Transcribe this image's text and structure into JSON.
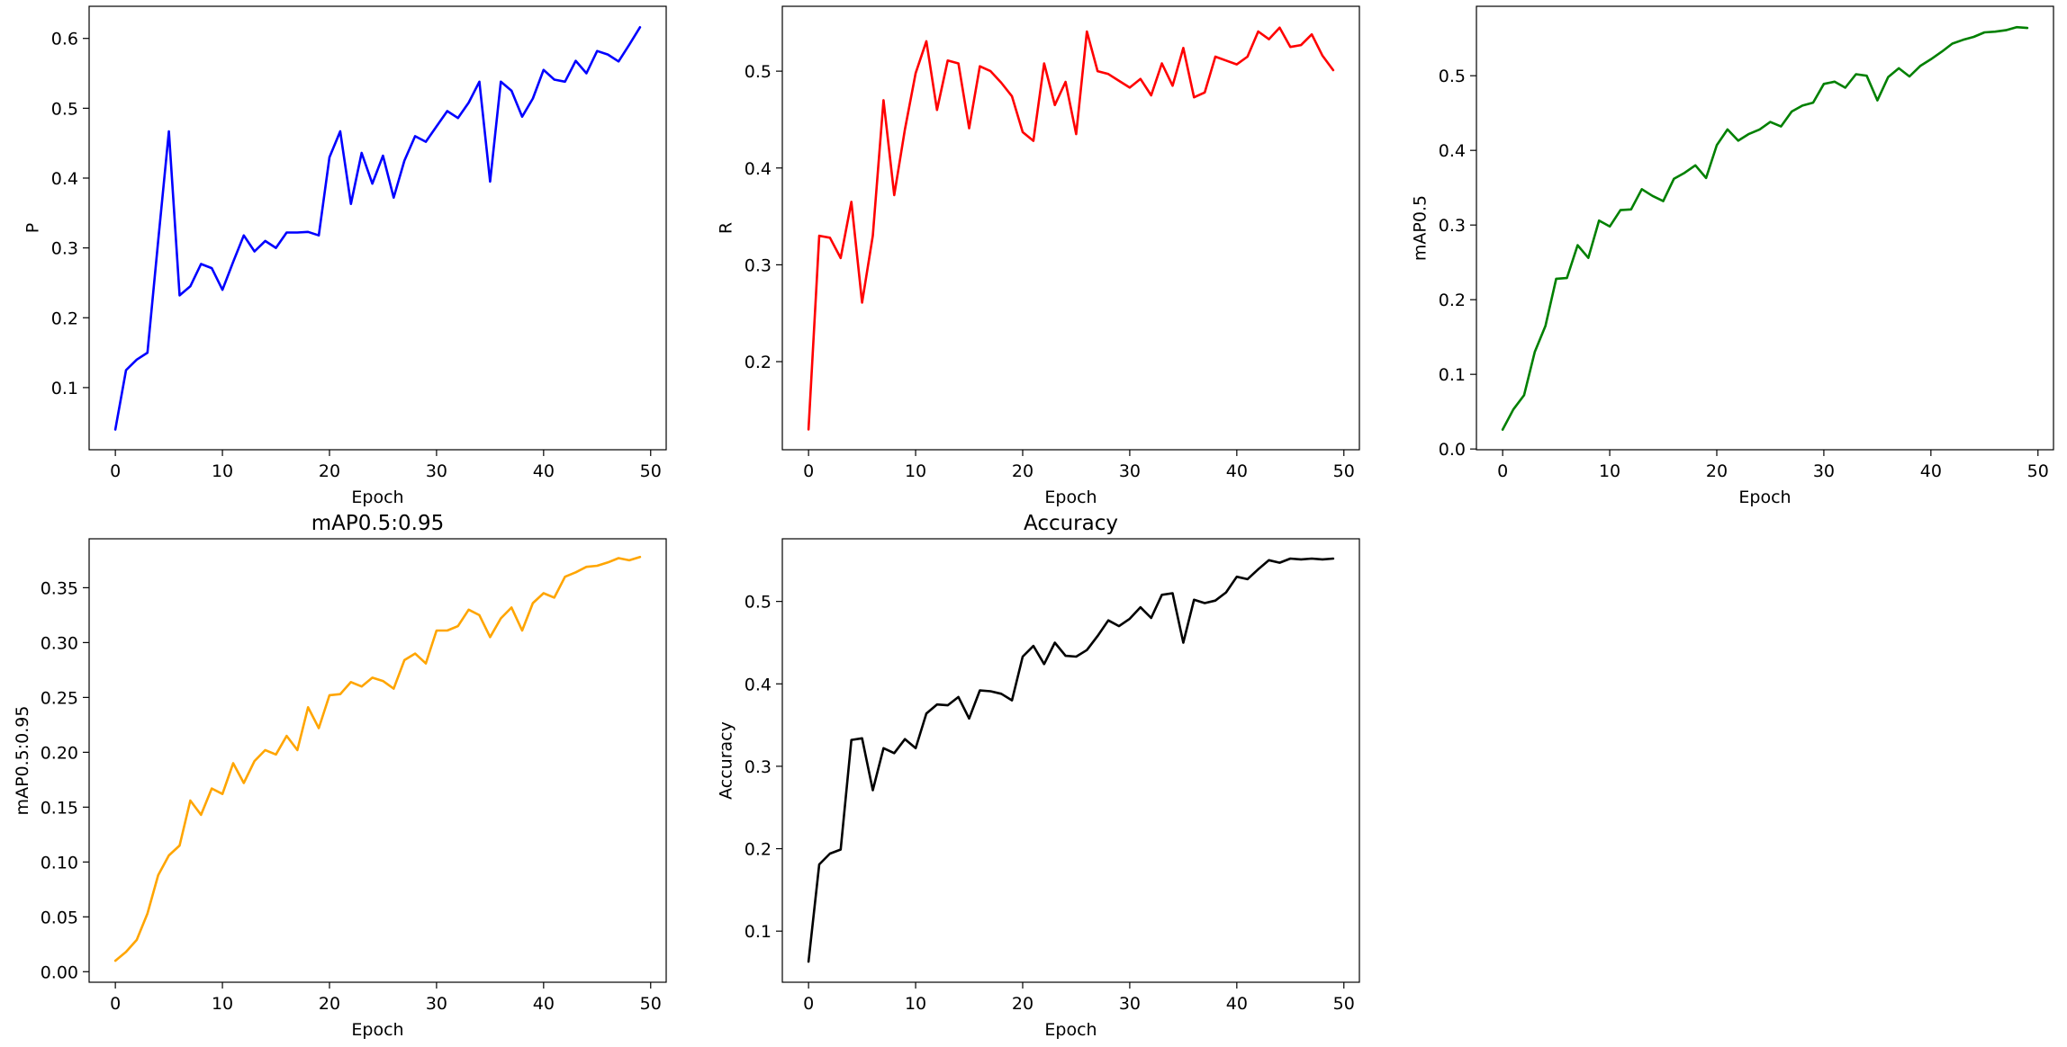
{
  "chart_data": [
    {
      "type": "line",
      "title": "",
      "xlabel": "Epoch",
      "ylabel": "P",
      "xlim": [
        -2.45,
        51.45
      ],
      "ylim": [
        0.011,
        0.646
      ],
      "xticks": [
        0,
        10,
        20,
        30,
        40,
        50
      ],
      "yticks": [
        "0.1",
        "0.2",
        "0.3",
        "0.4",
        "0.5",
        "0.6"
      ],
      "grid": false,
      "color": "#0000ff",
      "x": [
        0,
        1,
        2,
        3,
        4,
        5,
        6,
        7,
        8,
        9,
        10,
        11,
        12,
        13,
        14,
        15,
        16,
        17,
        18,
        19,
        20,
        21,
        22,
        23,
        24,
        25,
        26,
        27,
        28,
        29,
        30,
        31,
        32,
        33,
        34,
        35,
        36,
        37,
        38,
        39,
        40,
        41,
        42,
        43,
        44,
        45,
        46,
        47,
        48,
        49
      ],
      "values": [
        0.04,
        0.125,
        0.14,
        0.15,
        0.31,
        0.467,
        0.232,
        0.245,
        0.277,
        0.271,
        0.24,
        0.28,
        0.318,
        0.295,
        0.31,
        0.3,
        0.322,
        0.322,
        0.323,
        0.318,
        0.43,
        0.467,
        0.363,
        0.436,
        0.392,
        0.432,
        0.372,
        0.425,
        0.46,
        0.452,
        0.474,
        0.496,
        0.486,
        0.508,
        0.538,
        0.395,
        0.538,
        0.525,
        0.488,
        0.514,
        0.555,
        0.541,
        0.538,
        0.568,
        0.55,
        0.582,
        0.577,
        0.567,
        0.591,
        0.616
      ]
    },
    {
      "type": "line",
      "title": "",
      "xlabel": "Epoch",
      "ylabel": "R",
      "xlim": [
        -2.45,
        51.45
      ],
      "ylim": [
        0.109,
        0.567
      ],
      "xticks": [
        0,
        10,
        20,
        30,
        40,
        50
      ],
      "yticks": [
        "0.2",
        "0.3",
        "0.4",
        "0.5"
      ],
      "grid": false,
      "color": "#ff0000",
      "x": [
        0,
        1,
        2,
        3,
        4,
        5,
        6,
        7,
        8,
        9,
        10,
        11,
        12,
        13,
        14,
        15,
        16,
        17,
        18,
        19,
        20,
        21,
        22,
        23,
        24,
        25,
        26,
        27,
        28,
        29,
        30,
        31,
        32,
        33,
        34,
        35,
        36,
        37,
        38,
        39,
        40,
        41,
        42,
        43,
        44,
        45,
        46,
        47,
        48,
        49
      ],
      "values": [
        0.13,
        0.33,
        0.328,
        0.307,
        0.365,
        0.261,
        0.33,
        0.47,
        0.372,
        0.44,
        0.498,
        0.531,
        0.46,
        0.511,
        0.508,
        0.441,
        0.505,
        0.5,
        0.488,
        0.474,
        0.437,
        0.428,
        0.508,
        0.465,
        0.489,
        0.435,
        0.541,
        0.5,
        0.497,
        0.49,
        0.483,
        0.492,
        0.475,
        0.508,
        0.485,
        0.524,
        0.473,
        0.478,
        0.515,
        0.511,
        0.507,
        0.515,
        0.541,
        0.533,
        0.545,
        0.525,
        0.527,
        0.538,
        0.516,
        0.501
      ]
    },
    {
      "type": "line",
      "title": "",
      "xlabel": "Epoch",
      "ylabel": "mAP0.5",
      "xlim": [
        -2.45,
        51.45
      ],
      "ylim": [
        -0.001,
        0.593
      ],
      "xticks": [
        0,
        10,
        20,
        30,
        40,
        50
      ],
      "yticks": [
        "0.0",
        "0.1",
        "0.2",
        "0.3",
        "0.4",
        "0.5"
      ],
      "grid": false,
      "color": "#008000",
      "x": [
        0,
        1,
        2,
        3,
        4,
        5,
        6,
        7,
        8,
        9,
        10,
        11,
        12,
        13,
        14,
        15,
        16,
        17,
        18,
        19,
        20,
        21,
        22,
        23,
        24,
        25,
        26,
        27,
        28,
        29,
        30,
        31,
        32,
        33,
        34,
        35,
        36,
        37,
        38,
        39,
        40,
        41,
        42,
        43,
        44,
        45,
        46,
        47,
        48,
        49
      ],
      "values": [
        0.026,
        0.053,
        0.072,
        0.13,
        0.165,
        0.228,
        0.229,
        0.273,
        0.256,
        0.306,
        0.298,
        0.32,
        0.321,
        0.348,
        0.339,
        0.332,
        0.362,
        0.37,
        0.38,
        0.363,
        0.407,
        0.428,
        0.413,
        0.422,
        0.428,
        0.438,
        0.432,
        0.452,
        0.46,
        0.464,
        0.489,
        0.492,
        0.484,
        0.502,
        0.5,
        0.467,
        0.498,
        0.51,
        0.499,
        0.513,
        0.522,
        0.532,
        0.543,
        0.548,
        0.552,
        0.558,
        0.559,
        0.561,
        0.565,
        0.564
      ]
    },
    {
      "type": "line",
      "title": "mAP0.5:0.95",
      "xlabel": "Epoch",
      "ylabel": "mAP0.5:0.95",
      "xlim": [
        -2.45,
        51.45
      ],
      "ylim": [
        -0.0096,
        0.3946
      ],
      "xticks": [
        0,
        10,
        20,
        30,
        40,
        50
      ],
      "yticks": [
        "0.00",
        "0.05",
        "0.10",
        "0.15",
        "0.20",
        "0.25",
        "0.30",
        "0.35"
      ],
      "grid": false,
      "color": "#ffa500",
      "x": [
        0,
        1,
        2,
        3,
        4,
        5,
        6,
        7,
        8,
        9,
        10,
        11,
        12,
        13,
        14,
        15,
        16,
        17,
        18,
        19,
        20,
        21,
        22,
        23,
        24,
        25,
        26,
        27,
        28,
        29,
        30,
        31,
        32,
        33,
        34,
        35,
        36,
        37,
        38,
        39,
        40,
        41,
        42,
        43,
        44,
        45,
        46,
        47,
        48,
        49
      ],
      "values": [
        0.01,
        0.018,
        0.029,
        0.053,
        0.088,
        0.106,
        0.115,
        0.156,
        0.143,
        0.167,
        0.162,
        0.19,
        0.172,
        0.192,
        0.202,
        0.198,
        0.215,
        0.202,
        0.241,
        0.222,
        0.252,
        0.253,
        0.264,
        0.26,
        0.268,
        0.265,
        0.258,
        0.284,
        0.29,
        0.281,
        0.311,
        0.311,
        0.315,
        0.33,
        0.325,
        0.305,
        0.322,
        0.332,
        0.311,
        0.336,
        0.345,
        0.341,
        0.36,
        0.364,
        0.369,
        0.37,
        0.373,
        0.377,
        0.375,
        0.378
      ]
    },
    {
      "type": "line",
      "title": "Accuracy",
      "xlabel": "Epoch",
      "ylabel": "Accuracy",
      "xlim": [
        -2.45,
        51.45
      ],
      "ylim": [
        0.038,
        0.576
      ],
      "xticks": [
        0,
        10,
        20,
        30,
        40,
        50
      ],
      "yticks": [
        "0.1",
        "0.2",
        "0.3",
        "0.4",
        "0.5"
      ],
      "grid": false,
      "color": "#000000",
      "x": [
        0,
        1,
        2,
        3,
        4,
        5,
        6,
        7,
        8,
        9,
        10,
        11,
        12,
        13,
        14,
        15,
        16,
        17,
        18,
        19,
        20,
        21,
        22,
        23,
        24,
        25,
        26,
        27,
        28,
        29,
        30,
        31,
        32,
        33,
        34,
        35,
        36,
        37,
        38,
        39,
        40,
        41,
        42,
        43,
        44,
        45,
        46,
        47,
        48,
        49
      ],
      "values": [
        0.063,
        0.181,
        0.194,
        0.199,
        0.332,
        0.334,
        0.271,
        0.322,
        0.316,
        0.333,
        0.322,
        0.364,
        0.375,
        0.374,
        0.384,
        0.358,
        0.392,
        0.391,
        0.388,
        0.38,
        0.433,
        0.446,
        0.424,
        0.45,
        0.434,
        0.433,
        0.441,
        0.458,
        0.477,
        0.47,
        0.479,
        0.493,
        0.48,
        0.508,
        0.51,
        0.45,
        0.502,
        0.498,
        0.501,
        0.511,
        0.53,
        0.527,
        0.539,
        0.55,
        0.547,
        0.552,
        0.551,
        0.552,
        0.551,
        0.552
      ]
    }
  ]
}
